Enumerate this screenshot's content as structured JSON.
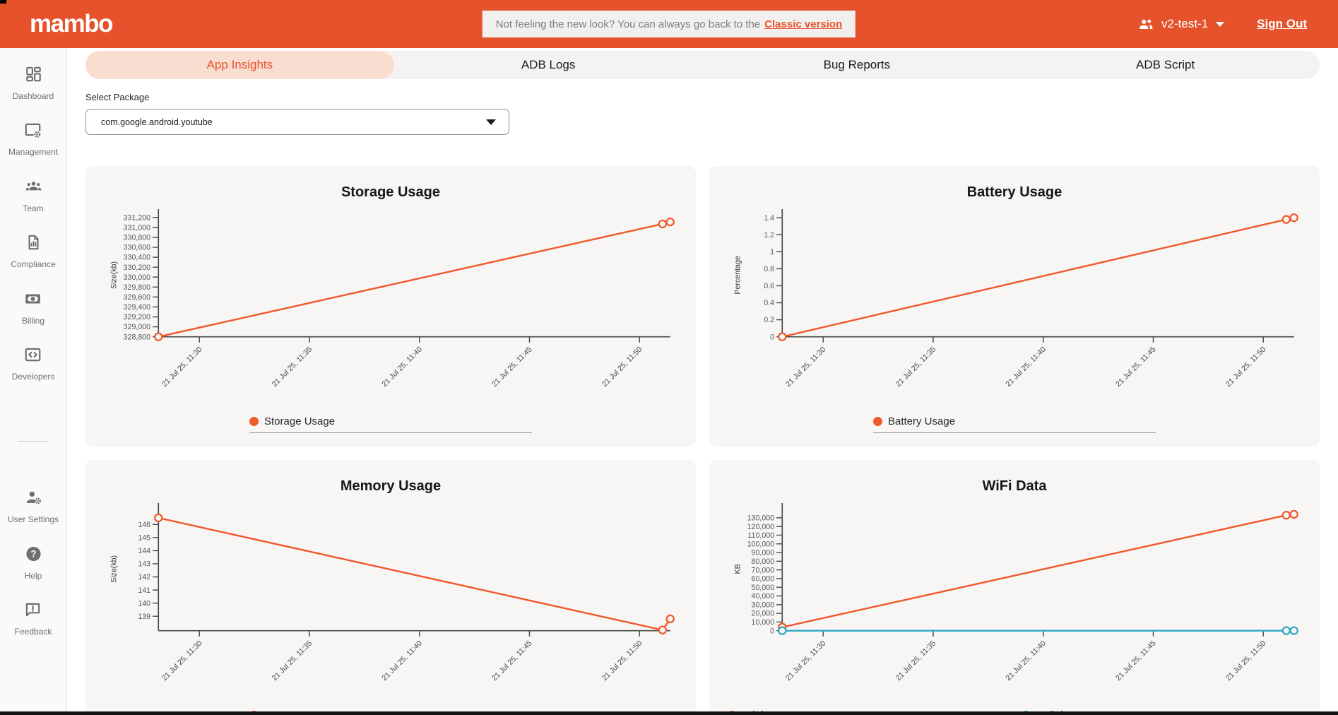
{
  "header": {
    "logo": "mambo",
    "banner": {
      "text": "Not feeling the new look? You can always go back to the",
      "link_label": "Classic version"
    },
    "user_label": "v2-test-1",
    "sign_out_label": "Sign Out"
  },
  "sidebar": {
    "items": [
      {
        "label": "Dashboard",
        "icon": "dashboard-icon"
      },
      {
        "label": "Management",
        "icon": "management-icon"
      },
      {
        "label": "Team",
        "icon": "team-icon"
      },
      {
        "label": "Compliance",
        "icon": "compliance-icon"
      },
      {
        "label": "Billing",
        "icon": "billing-icon"
      },
      {
        "label": "Developers",
        "icon": "developers-icon",
        "divider_after": true
      },
      {
        "label": "User Settings",
        "icon": "user-settings-icon"
      },
      {
        "label": "Help",
        "icon": "help-icon"
      },
      {
        "label": "Feedback",
        "icon": "feedback-icon"
      }
    ]
  },
  "tabs": [
    {
      "label": "App Insights",
      "active": true
    },
    {
      "label": "ADB Logs",
      "active": false
    },
    {
      "label": "Bug Reports",
      "active": false
    },
    {
      "label": "ADB Script",
      "active": false
    }
  ],
  "package_select": {
    "label": "Select Package",
    "value": "com.google.android.youtube"
  },
  "colors": {
    "accent": "#E5522B",
    "chart_orange": "#EF5A2C",
    "chart_teal": "#2CA8C2",
    "active_tab_bg": "#F9DDD0"
  },
  "chart_data": [
    {
      "type": "line",
      "title": "Storage Usage",
      "ylabel": "Size(kb)",
      "x_ticks": [
        "21 Jul 25, 11:30",
        "21 Jul 25, 11:35",
        "21 Jul 25, 11:40",
        "21 Jul 25, 11:45",
        "21 Jul 25, 11:50"
      ],
      "y_ticks": [
        328800,
        329000,
        329200,
        329400,
        329600,
        329800,
        330000,
        330200,
        330400,
        330600,
        330800,
        331000,
        331200
      ],
      "ylim": [
        328800,
        331280
      ],
      "series": [
        {
          "name": "Storage Usage",
          "color": "#EF5A2C",
          "points": [
            {
              "fx": 0,
              "v": 328800
            },
            {
              "fx": 0.985,
              "v": 331070
            },
            {
              "fx": 1,
              "v": 331110
            }
          ]
        }
      ]
    },
    {
      "type": "line",
      "title": "Battery Usage",
      "ylabel": "Percentage",
      "x_ticks": [
        "21 Jul 25, 11:30",
        "21 Jul 25, 11:35",
        "21 Jul 25, 11:40",
        "21 Jul 25, 11:45",
        "21 Jul 25, 11:50"
      ],
      "y_ticks": [
        0,
        0.2,
        0.4,
        0.6,
        0.8,
        1,
        1.2,
        1.4
      ],
      "ylim": [
        0,
        1.45
      ],
      "series": [
        {
          "name": "Battery Usage",
          "color": "#EF5A2C",
          "points": [
            {
              "fx": 0,
              "v": 0
            },
            {
              "fx": 0.985,
              "v": 1.38
            },
            {
              "fx": 1,
              "v": 1.4
            }
          ]
        }
      ]
    },
    {
      "type": "line",
      "title": "Memory Usage",
      "ylabel": "Size(kb)",
      "x_ticks": [
        "21 Jul 25, 11:30",
        "21 Jul 25, 11:35",
        "21 Jul 25, 11:40",
        "21 Jul 25, 11:45",
        "21 Jul 25, 11:50"
      ],
      "y_ticks": [
        139,
        140,
        141,
        142,
        143,
        144,
        145,
        146
      ],
      "ylim": [
        137.9,
        147.3
      ],
      "series": [
        {
          "name": "Memory Usage",
          "color": "#EF5A2C",
          "points": [
            {
              "fx": 0,
              "v": 146.5
            },
            {
              "fx": 0.985,
              "v": 137.95
            },
            {
              "fx": 1,
              "v": 138.8
            }
          ]
        }
      ]
    },
    {
      "type": "line",
      "title": "WiFi Data",
      "ylabel": "KB",
      "x_ticks": [
        "21 Jul 25, 11:30",
        "21 Jul 25, 11:35",
        "21 Jul 25, 11:40",
        "21 Jul 25, 11:45",
        "21 Jul 25, 11:50"
      ],
      "y_ticks": [
        0,
        10000,
        20000,
        30000,
        40000,
        50000,
        60000,
        70000,
        80000,
        90000,
        100000,
        110000,
        120000,
        130000
      ],
      "ylim": [
        0,
        142000
      ],
      "series": [
        {
          "name": "WiFi Data",
          "color": "#EF5A2C",
          "points": [
            {
              "fx": 0,
              "v": 4000
            },
            {
              "fx": 0.985,
              "v": 133000
            },
            {
              "fx": 1,
              "v": 134000
            }
          ]
        },
        {
          "name": "Cellular Data",
          "color": "#2CA8C2",
          "points": [
            {
              "fx": 0,
              "v": 0
            },
            {
              "fx": 0.985,
              "v": 0
            },
            {
              "fx": 1,
              "v": 0
            }
          ]
        }
      ]
    }
  ]
}
